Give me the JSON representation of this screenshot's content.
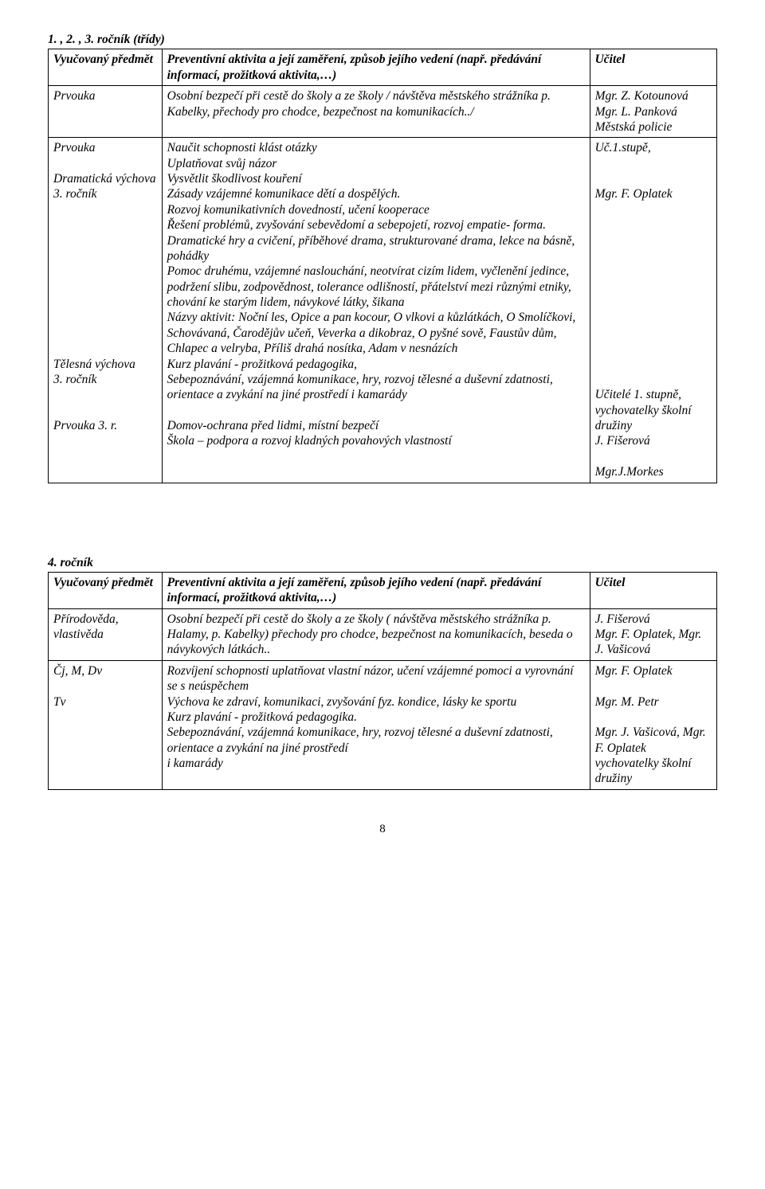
{
  "section1": {
    "title": "1. , 2. , 3. ročník (třídy)",
    "header": {
      "c1": "Vyučovaný předmět",
      "c2": "Preventivní aktivita a její zaměření, způsob jejího vedení (např. předávání informací, prožitková aktivita,…)",
      "c3": "Učitel"
    },
    "rows": [
      {
        "c1": "Prvouka",
        "c2": "Osobní bezpečí při cestě do školy a ze školy / návštěva městského strážníka p. Kabelky, přechody pro chodce, bezpečnost na komunikacích../",
        "c3": "Mgr. Z. Kotounová\nMgr. L. Panková\nMěstská policie"
      },
      {
        "c1": "Prvouka\n\nDramatická výchova\n3. ročník\n\n\n\n\n\n\n\n\n\n\nTělesná výchova\n3. ročník\n\n\nPrvouka 3. r.",
        "c2": "Naučit schopnosti klást otázky\nUplatňovat svůj názor\nVysvětlit škodlivost kouření\nZásady vzájemné komunikace dětí a dospělých.\nRozvoj komunikativních dovedností, učení kooperace\nŘešení problémů, zvyšování sebevědomí a sebepojetí, rozvoj empatie- forma. Dramatické hry a cvičení, příběhové drama, strukturované drama, lekce na básně, pohádky\nPomoc druhému, vzájemné naslouchání, neotvírat cizím lidem, vyčlenění jedince, podržení slibu, zodpovědnost, tolerance odlišností, přátelství mezi různými etniky, chování ke starým lidem, návykové látky, šikana\nNázvy aktivit: Noční les, Opice a pan kocour, O vlkovi a kůzlátkách, O Smolíčkovi, Schovávaná, Čarodějův učeň, Veverka a dikobraz, O pyšné sově, Faustův dům, Chlapec a velryba, Příliš drahá nosítka, Adam v nesnázích\nKurz plavání -  prožitková pedagogika,\nSebepoznávání, vzájemná komunikace, hry, rozvoj tělesné a duševní zdatnosti, orientace a zvykání na jiné prostředí i kamarády\n\nDomov-ochrana před lidmi, místní bezpečí\nŠkola – podpora a rozvoj kladných povahových vlastností",
        "c3": "Uč.1.stupě,\n\n\nMgr. F. Oplatek\n\n\n\n\n\n\n\n\n\n\n\n\nUčitelé 1. stupně,\nvychovatelky školní družiny\nJ. Fišerová\n\nMgr.J.Morkes"
      }
    ]
  },
  "section2": {
    "title": "4. ročník",
    "header": {
      "c1": "Vyučovaný předmět",
      "c2": "Preventivní aktivita a její zaměření, způsob jejího vedení (např. předávání informací, prožitková aktivita,…)",
      "c3": "Učitel"
    },
    "rows": [
      {
        "c1": "Přírodověda, vlastivěda",
        "c2": "Osobní bezpečí při cestě do školy a ze školy ( návštěva městského strážníka p. Halamy, p. Kabelky) přechody pro chodce, bezpečnost na komunikacích, beseda o návykových látkách..",
        "c3": "J. Fišerová\nMgr. F. Oplatek, Mgr.\nJ. Vašicová"
      },
      {
        "c1": "Čj, M, Dv\n\nTv",
        "c2": "Rozvíjení schopnosti uplatňovat vlastní názor, učení vzájemné pomoci a vyrovnání se s neúspěchem\nVýchova ke zdraví, komunikaci, zvyšování fyz. kondice, lásky ke sportu\nKurz plavání -  prožitková pedagogika.\nSebepoznávání, vzájemná komunikace, hry, rozvoj tělesné a duševní zdatnosti, orientace a zvykání na jiné prostředí\n i kamarády",
        "c3": "Mgr. F. Oplatek\n\nMgr. M. Petr\n\nMgr. J. Vašicová, Mgr. F. Oplatek\nvychovatelky školní družiny"
      }
    ]
  },
  "page_number": "8"
}
